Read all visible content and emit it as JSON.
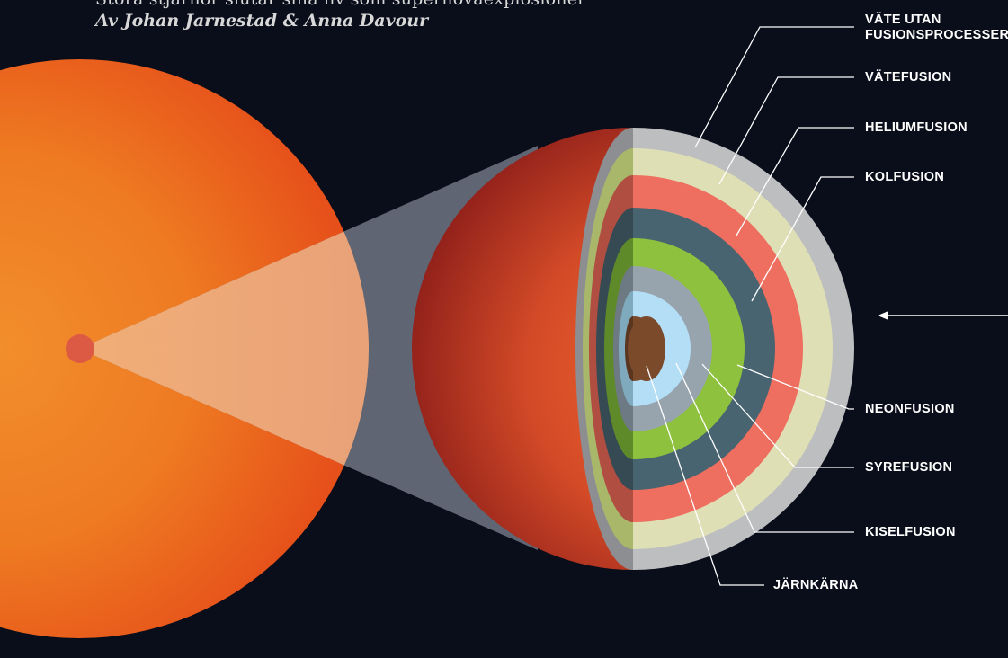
{
  "header": {
    "top_line_clipped": "Stora stjärnor slutar sina liv som supernovaexplosioner",
    "byline": "Av Johan Jarnestad & Anna Davour"
  },
  "layers": [
    {
      "id": "hydrogen-envelope",
      "label_lines": [
        "VÄTE UTAN",
        "FUSIONSPROCESSER"
      ],
      "color": "#bdbec0",
      "cut_color": "#8d8e92"
    },
    {
      "id": "hydrogen-fusion",
      "label_lines": [
        "VÄTEFUSION"
      ],
      "color": "#dfdfb6",
      "cut_color": "#a8b76a"
    },
    {
      "id": "helium-fusion",
      "label_lines": [
        "HELIUMFUSION"
      ],
      "color": "#ee6e5f",
      "cut_color": "#b04e42"
    },
    {
      "id": "carbon-fusion",
      "label_lines": [
        "KOLFUSION"
      ],
      "color": "#486470",
      "cut_color": "#354a52"
    },
    {
      "id": "neon-fusion",
      "label_lines": [
        "NEONFUSION"
      ],
      "color": "#8ec13d",
      "cut_color": "#5e8a2a"
    },
    {
      "id": "oxygen-fusion",
      "label_lines": [
        "SYREFUSION"
      ],
      "color": "#97a4ae",
      "cut_color": "#6d7a84"
    },
    {
      "id": "silicon-fusion",
      "label_lines": [
        "KISELFUSION"
      ],
      "color": "#b3def5",
      "cut_color": "#7fa9bd"
    },
    {
      "id": "iron-core",
      "label_lines": [
        "JÄRNKÄRNA"
      ],
      "color": "#7a4a2b",
      "cut_color": "#5a3520"
    }
  ],
  "colors": {
    "background": "#0a0d1a",
    "giant_star": "#f08a2a",
    "star_surface": "#e06a30",
    "leader_lines": "#ffffff"
  }
}
